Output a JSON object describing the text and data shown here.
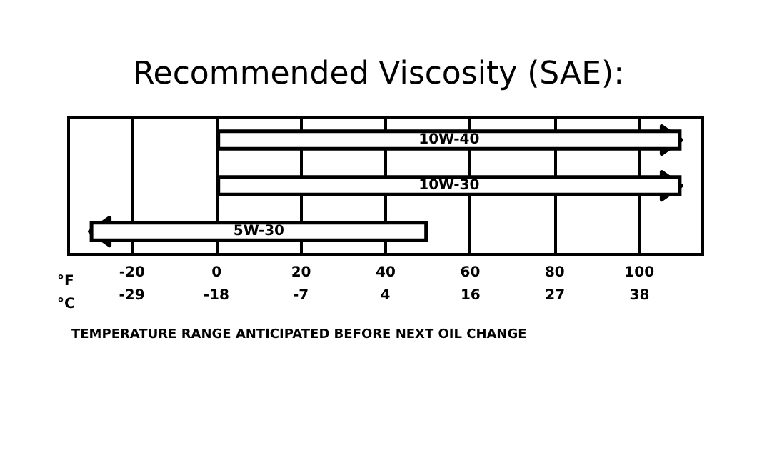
{
  "chart_data": {
    "type": "bar",
    "orientation": "horizontal",
    "title": "Recommended Viscosity (SAE):",
    "xlabel": "°F",
    "x2label": "°C",
    "categories": [
      "10W-40",
      "10W-30",
      "5W-30"
    ],
    "base": [
      0,
      0,
      -30
    ],
    "values": [
      110,
      110,
      80
    ],
    "color": "#ffffff",
    "xlim": [
      -35,
      115
    ],
    "xticks": [
      -20,
      0,
      20,
      40,
      60,
      80,
      100
    ],
    "x2lim": [
      -37.2,
      46.1
    ],
    "x2ticks": [
      {
        "value": -28.9,
        "label": "-29"
      },
      {
        "value": -17.8,
        "label": "-18"
      },
      {
        "value": -6.7,
        "label": "-7"
      },
      {
        "value": 4.4,
        "label": "4"
      },
      {
        "value": 15.6,
        "label": "16"
      },
      {
        "value": 26.7,
        "label": "27"
      },
      {
        "value": 37.8,
        "label": "38"
      }
    ],
    "tick_labels": "x",
    "grid": "x",
    "annotations": [
      "TEMPERATURE RANGE ANTICIPATED BEFORE NEXT OIL CHANGE"
    ]
  }
}
